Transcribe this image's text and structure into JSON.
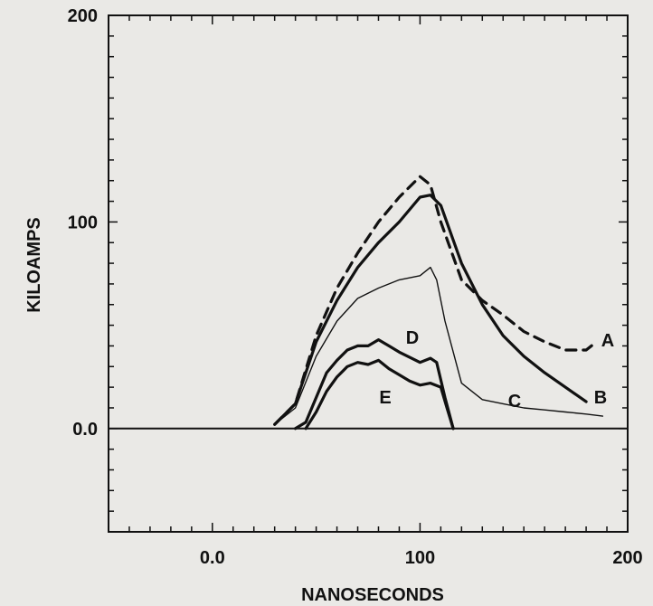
{
  "chart_data": {
    "type": "line",
    "xlabel": "NANOSECONDS",
    "ylabel": "KILOAMPS",
    "xlim": [
      -50,
      200
    ],
    "ylim": [
      -50,
      200
    ],
    "x_ticks": [
      0,
      100,
      200
    ],
    "x_tick_labels": [
      "0.0",
      "100",
      "200"
    ],
    "y_ticks": [
      200,
      100,
      0
    ],
    "y_tick_labels": [
      "200",
      "100",
      "0.0"
    ],
    "grid": false,
    "series": [
      {
        "name": "A",
        "style": "dashed",
        "x": [
          30,
          40,
          50,
          60,
          70,
          80,
          90,
          100,
          105,
          110,
          120,
          130,
          140,
          150,
          160,
          170,
          180,
          185
        ],
        "y": [
          2,
          12,
          45,
          68,
          85,
          100,
          112,
          122,
          118,
          100,
          72,
          62,
          55,
          47,
          42,
          38,
          38,
          42
        ]
      },
      {
        "name": "B",
        "style": "bold",
        "x": [
          30,
          40,
          50,
          60,
          70,
          80,
          90,
          100,
          105,
          110,
          120,
          130,
          140,
          150,
          160,
          170,
          180
        ],
        "y": [
          2,
          12,
          42,
          62,
          78,
          90,
          100,
          112,
          113,
          108,
          80,
          60,
          45,
          35,
          27,
          20,
          13
        ]
      },
      {
        "name": "C",
        "style": "thin",
        "x": [
          30,
          40,
          50,
          60,
          70,
          80,
          90,
          100,
          105,
          108,
          112,
          120,
          130,
          140,
          150,
          160,
          170,
          180,
          188
        ],
        "y": [
          2,
          10,
          35,
          52,
          63,
          68,
          72,
          74,
          78,
          72,
          52,
          22,
          14,
          12,
          10,
          9,
          8,
          7,
          6
        ]
      },
      {
        "name": "D",
        "style": "bold",
        "x": [
          40,
          45,
          50,
          55,
          60,
          65,
          70,
          75,
          80,
          85,
          90,
          100,
          105,
          108,
          112,
          116
        ],
        "y": [
          0,
          3,
          15,
          27,
          33,
          38,
          40,
          40,
          43,
          40,
          37,
          32,
          34,
          32,
          15,
          0
        ]
      },
      {
        "name": "E",
        "style": "bold",
        "x": [
          45,
          50,
          55,
          60,
          65,
          70,
          75,
          80,
          85,
          90,
          95,
          100,
          105,
          110,
          113,
          116
        ],
        "y": [
          0,
          8,
          18,
          25,
          30,
          32,
          31,
          33,
          29,
          26,
          23,
          21,
          22,
          20,
          10,
          0
        ]
      }
    ]
  }
}
